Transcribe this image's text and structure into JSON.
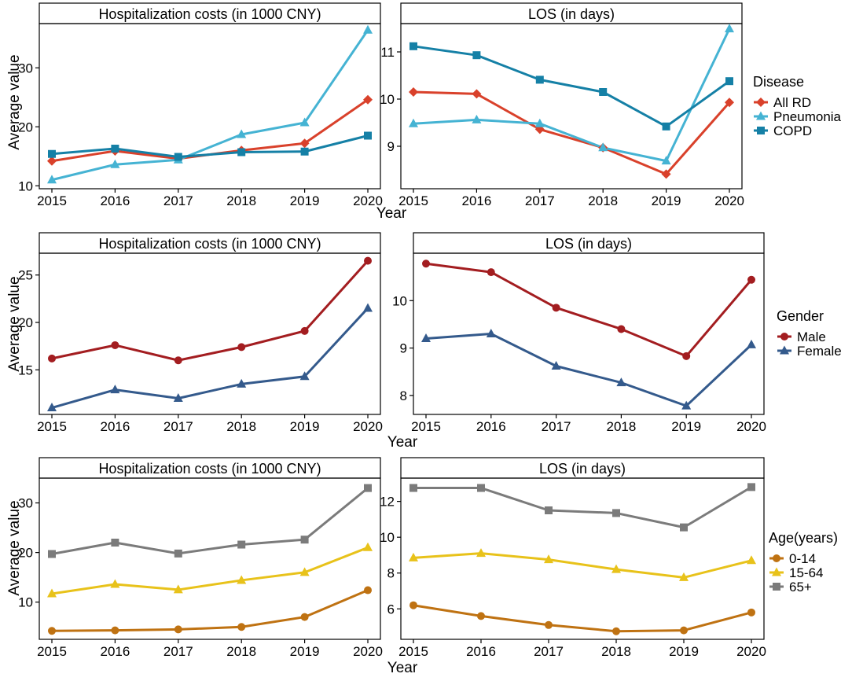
{
  "chart_data": [
    {
      "type": "line",
      "title": "Hospitalization costs (in 1000 CNY)",
      "xlabel": "Year",
      "ylabel": "Average value",
      "x": [
        2015,
        2016,
        2017,
        2018,
        2019,
        2020
      ],
      "yticks": [
        10,
        20,
        30
      ],
      "ylim": [
        9.5,
        37.5
      ],
      "series": [
        {
          "name": "All RD",
          "color": "#d9412b",
          "marker": "diamond",
          "values": [
            14.2,
            15.9,
            14.6,
            16.0,
            17.2,
            24.6
          ]
        },
        {
          "name": "Pneumonia",
          "color": "#45b3d3",
          "marker": "triangle",
          "values": [
            11.0,
            13.6,
            14.4,
            18.7,
            20.7,
            36.4
          ]
        },
        {
          "name": "COPD",
          "color": "#1580a6",
          "marker": "square",
          "values": [
            15.4,
            16.3,
            14.9,
            15.7,
            15.8,
            18.5
          ]
        }
      ]
    },
    {
      "type": "line",
      "title": "LOS (in days)",
      "xlabel": "Year",
      "ylabel": "",
      "x": [
        2015,
        2016,
        2017,
        2018,
        2019,
        2020
      ],
      "yticks": [
        9,
        10,
        11
      ],
      "ylim": [
        8.1,
        11.6
      ],
      "series": [
        {
          "name": "All RD",
          "color": "#d9412b",
          "marker": "diamond",
          "values": [
            10.15,
            10.11,
            9.36,
            8.97,
            8.41,
            9.93
          ]
        },
        {
          "name": "Pneumonia",
          "color": "#45b3d3",
          "marker": "triangle",
          "values": [
            9.48,
            9.56,
            9.48,
            8.97,
            8.69,
            11.49
          ]
        },
        {
          "name": "COPD",
          "color": "#1580a6",
          "marker": "square",
          "values": [
            11.12,
            10.93,
            10.41,
            10.15,
            9.42,
            10.38
          ]
        }
      ]
    },
    {
      "type": "line",
      "title": "Hospitalization costs (in 1000 CNY)",
      "xlabel": "Year",
      "ylabel": "Average value",
      "x": [
        2015,
        2016,
        2017,
        2018,
        2019,
        2020
      ],
      "yticks": [
        15,
        20,
        25
      ],
      "ylim": [
        10.3,
        27.3
      ],
      "series": [
        {
          "name": "Male",
          "color": "#a31d20",
          "marker": "circle",
          "values": [
            16.2,
            17.6,
            16.0,
            17.4,
            19.1,
            26.5
          ]
        },
        {
          "name": "Female",
          "color": "#345a8c",
          "marker": "triangle",
          "values": [
            11.0,
            12.9,
            12.0,
            13.5,
            14.3,
            21.5
          ]
        }
      ]
    },
    {
      "type": "line",
      "title": "LOS (in days)",
      "xlabel": "Year",
      "ylabel": "",
      "x": [
        2015,
        2016,
        2017,
        2018,
        2019,
        2020
      ],
      "yticks": [
        8,
        9,
        10
      ],
      "ylim": [
        7.6,
        11.0
      ],
      "series": [
        {
          "name": "Male",
          "color": "#a31d20",
          "marker": "circle",
          "values": [
            10.78,
            10.6,
            9.85,
            9.4,
            8.83,
            10.44
          ]
        },
        {
          "name": "Female",
          "color": "#345a8c",
          "marker": "triangle",
          "values": [
            9.2,
            9.3,
            8.62,
            8.27,
            7.78,
            9.07
          ]
        }
      ]
    },
    {
      "type": "line",
      "title": "Hospitalization costs (in 1000 CNY)",
      "xlabel": "Year",
      "ylabel": "Average value",
      "x": [
        2015,
        2016,
        2017,
        2018,
        2019,
        2020
      ],
      "yticks": [
        10,
        20,
        30
      ],
      "ylim": [
        2.5,
        35.0
      ],
      "series": [
        {
          "name": "0-14",
          "color": "#bf7212",
          "marker": "circle",
          "values": [
            4.2,
            4.3,
            4.5,
            5.0,
            7.0,
            12.4
          ]
        },
        {
          "name": "15-64",
          "color": "#e8c21a",
          "marker": "triangle",
          "values": [
            11.7,
            13.6,
            12.5,
            14.4,
            16.0,
            21.0
          ]
        },
        {
          "name": "65+",
          "color": "#7b7b7b",
          "marker": "square",
          "values": [
            19.7,
            22.0,
            19.8,
            21.6,
            22.6,
            33.0
          ]
        }
      ]
    },
    {
      "type": "line",
      "title": "LOS (in days)",
      "xlabel": "Year",
      "ylabel": "",
      "x": [
        2015,
        2016,
        2017,
        2018,
        2019,
        2020
      ],
      "yticks": [
        6,
        8,
        10,
        12
      ],
      "ylim": [
        4.3,
        13.3
      ],
      "series": [
        {
          "name": "0-14",
          "color": "#bf7212",
          "marker": "circle",
          "values": [
            6.2,
            5.6,
            5.1,
            4.75,
            4.8,
            5.8
          ]
        },
        {
          "name": "15-64",
          "color": "#e8c21a",
          "marker": "triangle",
          "values": [
            8.85,
            9.1,
            8.75,
            8.2,
            7.75,
            8.7
          ]
        },
        {
          "name": "65+",
          "color": "#7b7b7b",
          "marker": "square",
          "values": [
            12.75,
            12.75,
            11.5,
            11.35,
            10.55,
            12.8
          ]
        }
      ]
    }
  ],
  "legends": [
    {
      "title": "Disease",
      "items": [
        "All RD",
        "Pneumonia",
        "COPD"
      ]
    },
    {
      "title": "Gender",
      "items": [
        "Male",
        "Female"
      ]
    },
    {
      "title": "Age(years)",
      "items": [
        "0-14",
        "15-64",
        "65+"
      ]
    }
  ],
  "labels": {
    "year": "Year",
    "average_value": "Average value"
  }
}
